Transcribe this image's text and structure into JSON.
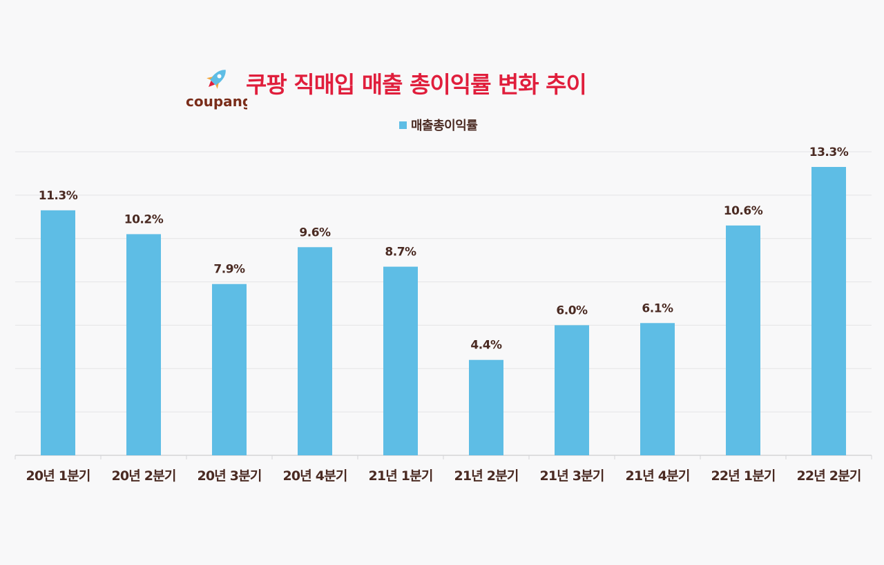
{
  "header": {
    "logo_text": "coupang",
    "title": "쿠팡 직매입 매출 총이익률 변화 추이"
  },
  "colors": {
    "bar": "#5ebde5",
    "title": "#e01e3c",
    "text": "#4a2a22",
    "grid": "#e4e4e6",
    "background": "#f8f8f9"
  },
  "icons": {
    "logo": "rocket-icon"
  },
  "chart_data": {
    "type": "bar",
    "categories": [
      "20년 1분기",
      "20년 2분기",
      "20년 3분기",
      "20년 4분기",
      "21년 1분기",
      "21년 2분기",
      "21년 3분기",
      "21년 4분기",
      "22년 1분기",
      "22년 2분기"
    ],
    "series": [
      {
        "name": "매출총이익률",
        "values": [
          11.3,
          10.2,
          7.9,
          9.6,
          8.7,
          4.4,
          6.0,
          6.1,
          10.6,
          13.3
        ],
        "labels": [
          "11.3%",
          "10.2%",
          "7.9%",
          "9.6%",
          "8.7%",
          "4.4%",
          "6.0%",
          "6.1%",
          "10.6%",
          "13.3%"
        ]
      }
    ],
    "title": "쿠팡 직매입 매출 총이익률 변화 추이",
    "xlabel": "",
    "ylabel": "",
    "ylim": [
      0,
      14
    ],
    "grid": true,
    "legend": "top-center"
  }
}
